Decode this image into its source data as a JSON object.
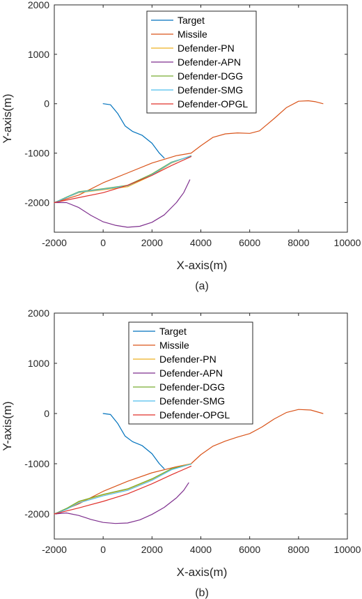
{
  "chart_data": [
    {
      "type": "line",
      "caption": "(a)",
      "xlabel": "X-axis(m)",
      "ylabel": "Y-axis(m)",
      "xlim": [
        -2000,
        10000
      ],
      "ylim": [
        -2600,
        2000
      ],
      "xticks": [
        -2000,
        0,
        2000,
        4000,
        6000,
        8000,
        10000
      ],
      "yticks": [
        -2000,
        -1000,
        0,
        1000,
        2000
      ],
      "grid": false,
      "legend_position": "top-center",
      "series": [
        {
          "name": "Target",
          "color": "#0072BD",
          "points": [
            [
              0,
              0
            ],
            [
              300,
              -20
            ],
            [
              600,
              -200
            ],
            [
              900,
              -450
            ],
            [
              1200,
              -560
            ],
            [
              1600,
              -640
            ],
            [
              2000,
              -800
            ],
            [
              2300,
              -1000
            ],
            [
              2500,
              -1100
            ]
          ]
        },
        {
          "name": "Missile",
          "color": "#D95319",
          "points": [
            [
              -2000,
              -2000
            ],
            [
              -1000,
              -1850
            ],
            [
              0,
              -1600
            ],
            [
              1000,
              -1400
            ],
            [
              2000,
              -1200
            ],
            [
              3000,
              -1050
            ],
            [
              3600,
              -1000
            ],
            [
              4000,
              -850
            ],
            [
              4500,
              -680
            ],
            [
              5000,
              -610
            ],
            [
              5500,
              -590
            ],
            [
              6000,
              -600
            ],
            [
              6400,
              -550
            ],
            [
              7000,
              -300
            ],
            [
              7500,
              -80
            ],
            [
              8000,
              50
            ],
            [
              8400,
              60
            ],
            [
              8700,
              40
            ],
            [
              9000,
              0
            ]
          ]
        },
        {
          "name": "Defender-PN",
          "color": "#EDB120",
          "points": [
            [
              -2000,
              -2000
            ],
            [
              -1500,
              -1900
            ],
            [
              -1000,
              -1800
            ],
            [
              0,
              -1740
            ],
            [
              1000,
              -1680
            ],
            [
              2000,
              -1450
            ],
            [
              2800,
              -1200
            ],
            [
              3600,
              -1050
            ]
          ]
        },
        {
          "name": "Defender-APN",
          "color": "#7E2F8E",
          "points": [
            [
              -2000,
              -2000
            ],
            [
              -1500,
              -2000
            ],
            [
              -1000,
              -2100
            ],
            [
              -500,
              -2260
            ],
            [
              0,
              -2390
            ],
            [
              500,
              -2460
            ],
            [
              1000,
              -2500
            ],
            [
              1500,
              -2480
            ],
            [
              2000,
              -2400
            ],
            [
              2500,
              -2250
            ],
            [
              3000,
              -2000
            ],
            [
              3300,
              -1800
            ],
            [
              3550,
              -1540
            ]
          ]
        },
        {
          "name": "Defender-DGG",
          "color": "#77AC30",
          "points": [
            [
              -2000,
              -2000
            ],
            [
              -1500,
              -1890
            ],
            [
              -1000,
              -1780
            ],
            [
              0,
              -1720
            ],
            [
              1000,
              -1650
            ],
            [
              2000,
              -1420
            ],
            [
              2800,
              -1180
            ],
            [
              3600,
              -1060
            ]
          ]
        },
        {
          "name": "Defender-SMG",
          "color": "#4DBEEE",
          "points": [
            [
              -2000,
              -2000
            ],
            [
              -1500,
              -1900
            ],
            [
              -1000,
              -1790
            ],
            [
              0,
              -1730
            ],
            [
              1000,
              -1660
            ],
            [
              2000,
              -1440
            ],
            [
              2800,
              -1190
            ],
            [
              3600,
              -1055
            ]
          ]
        },
        {
          "name": "Defender-OPGL",
          "color": "#E0302B",
          "points": [
            [
              -2000,
              -2000
            ],
            [
              -1000,
              -1900
            ],
            [
              0,
              -1800
            ],
            [
              1000,
              -1650
            ],
            [
              2000,
              -1450
            ],
            [
              2800,
              -1250
            ],
            [
              3600,
              -1070
            ]
          ]
        }
      ]
    },
    {
      "type": "line",
      "caption": "(b)",
      "xlabel": "X-axis(m)",
      "ylabel": "Y-axis(m)",
      "xlim": [
        -2000,
        10000
      ],
      "ylim": [
        -2500,
        2000
      ],
      "xticks": [
        -2000,
        0,
        2000,
        4000,
        6000,
        8000,
        10000
      ],
      "yticks": [
        -2000,
        -1000,
        0,
        1000,
        2000
      ],
      "grid": false,
      "legend_position": "top-center",
      "series": [
        {
          "name": "Target",
          "color": "#0072BD",
          "points": [
            [
              0,
              0
            ],
            [
              300,
              -20
            ],
            [
              600,
              -200
            ],
            [
              900,
              -450
            ],
            [
              1200,
              -560
            ],
            [
              1600,
              -640
            ],
            [
              2000,
              -800
            ],
            [
              2300,
              -1000
            ],
            [
              2500,
              -1100
            ]
          ]
        },
        {
          "name": "Missile",
          "color": "#D95319",
          "points": [
            [
              -2000,
              -2000
            ],
            [
              -1000,
              -1800
            ],
            [
              0,
              -1550
            ],
            [
              1000,
              -1350
            ],
            [
              2000,
              -1180
            ],
            [
              3000,
              -1060
            ],
            [
              3600,
              -1000
            ],
            [
              4000,
              -820
            ],
            [
              4500,
              -650
            ],
            [
              5000,
              -550
            ],
            [
              5500,
              -470
            ],
            [
              6000,
              -400
            ],
            [
              6500,
              -270
            ],
            [
              7000,
              -110
            ],
            [
              7500,
              20
            ],
            [
              8000,
              80
            ],
            [
              8500,
              70
            ],
            [
              9000,
              0
            ]
          ]
        },
        {
          "name": "Defender-PN",
          "color": "#EDB120",
          "points": [
            [
              -2000,
              -2000
            ],
            [
              -1500,
              -1900
            ],
            [
              -1000,
              -1760
            ],
            [
              0,
              -1620
            ],
            [
              1000,
              -1510
            ],
            [
              2000,
              -1310
            ],
            [
              2800,
              -1100
            ],
            [
              3600,
              -1000
            ]
          ]
        },
        {
          "name": "Defender-APN",
          "color": "#7E2F8E",
          "points": [
            [
              -2000,
              -2000
            ],
            [
              -1500,
              -1980
            ],
            [
              -1000,
              -2030
            ],
            [
              -500,
              -2110
            ],
            [
              0,
              -2170
            ],
            [
              500,
              -2190
            ],
            [
              1000,
              -2180
            ],
            [
              1500,
              -2120
            ],
            [
              2000,
              -2010
            ],
            [
              2500,
              -1870
            ],
            [
              3000,
              -1680
            ],
            [
              3300,
              -1530
            ],
            [
              3500,
              -1380
            ]
          ]
        },
        {
          "name": "Defender-DGG",
          "color": "#77AC30",
          "points": [
            [
              -2000,
              -2000
            ],
            [
              -1500,
              -1890
            ],
            [
              -1000,
              -1750
            ],
            [
              0,
              -1610
            ],
            [
              1000,
              -1500
            ],
            [
              2000,
              -1300
            ],
            [
              2800,
              -1100
            ],
            [
              3600,
              -1010
            ]
          ]
        },
        {
          "name": "Defender-SMG",
          "color": "#4DBEEE",
          "points": [
            [
              -2000,
              -2000
            ],
            [
              -1500,
              -1910
            ],
            [
              -1000,
              -1780
            ],
            [
              0,
              -1640
            ],
            [
              1000,
              -1530
            ],
            [
              2000,
              -1330
            ],
            [
              2800,
              -1120
            ],
            [
              3600,
              -1005
            ]
          ]
        },
        {
          "name": "Defender-OPGL",
          "color": "#E0302B",
          "points": [
            [
              -2000,
              -2000
            ],
            [
              -1000,
              -1880
            ],
            [
              0,
              -1750
            ],
            [
              1000,
              -1600
            ],
            [
              2000,
              -1400
            ],
            [
              2800,
              -1220
            ],
            [
              3600,
              -1050
            ]
          ]
        }
      ]
    }
  ]
}
